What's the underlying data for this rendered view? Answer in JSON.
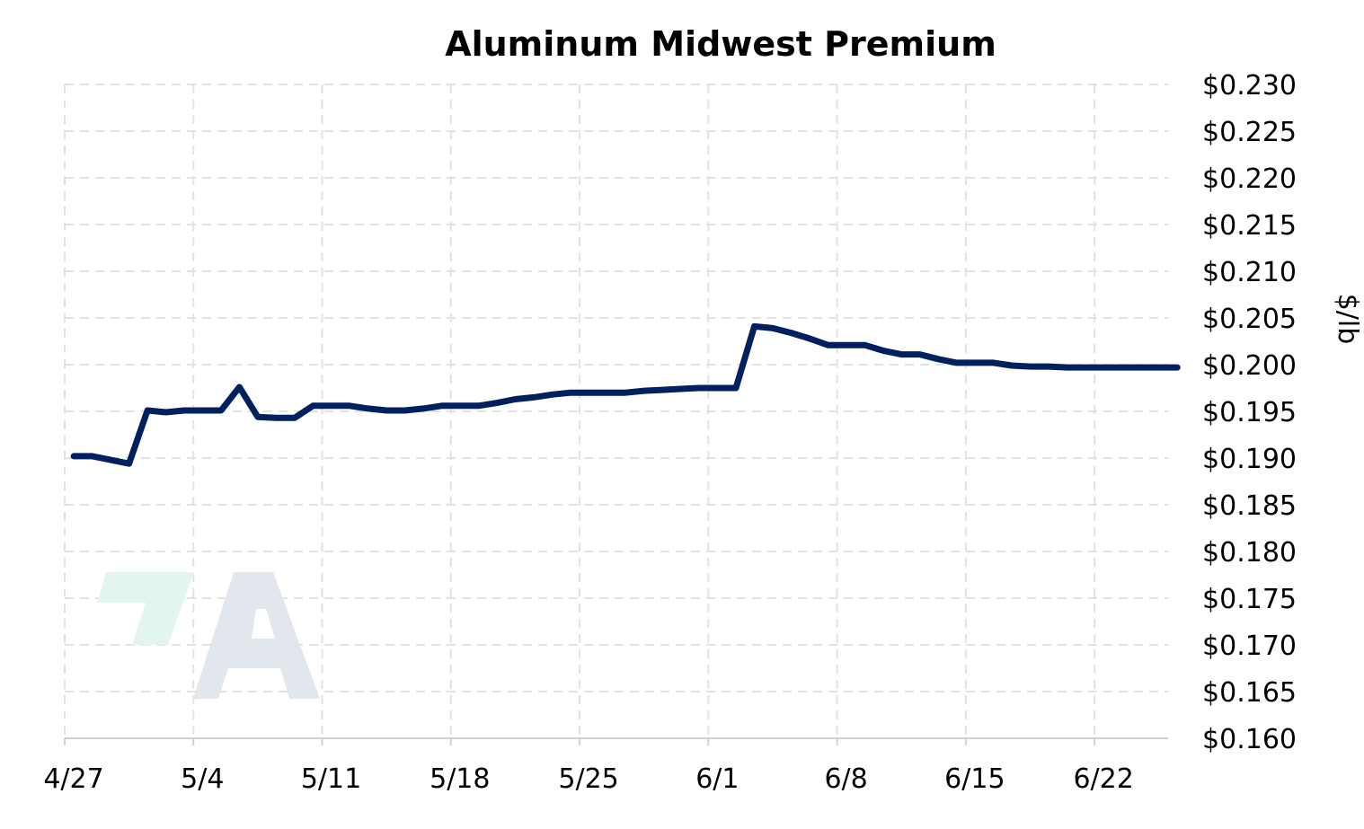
{
  "chart_data": {
    "type": "line",
    "title": "Aluminum Midwest Premium",
    "xlabel": "",
    "ylabel": "$/lb",
    "x_ticks": [
      "4/27",
      "5/4",
      "5/11",
      "5/18",
      "5/25",
      "6/1",
      "6/8",
      "6/15",
      "6/22"
    ],
    "y_ticks": [
      "$0.230",
      "$0.225",
      "$0.220",
      "$0.215",
      "$0.210",
      "$0.205",
      "$0.200",
      "$0.195",
      "$0.190",
      "$0.185",
      "$0.180",
      "$0.175",
      "$0.170",
      "$0.165",
      "$0.160"
    ],
    "ylim": [
      0.16,
      0.23
    ],
    "xlim": [
      "4/27",
      "6/26"
    ],
    "grid": true,
    "line_color": "#002060",
    "watermark_colors": {
      "accent": "#e3f6ee",
      "letter": "#e2e6ed"
    },
    "series": [
      {
        "x": [
          "4/27",
          "4/28",
          "4/29",
          "4/30",
          "5/1",
          "5/2",
          "5/3",
          "5/4",
          "5/5",
          "5/6",
          "5/7",
          "5/8",
          "5/9",
          "5/10",
          "5/11",
          "5/12",
          "5/13",
          "5/14",
          "5/15",
          "5/16",
          "5/17",
          "5/18",
          "5/19",
          "5/20",
          "5/21",
          "5/22",
          "5/23",
          "5/24",
          "5/25",
          "5/26",
          "5/27",
          "5/28",
          "5/29",
          "5/30",
          "5/31",
          "6/1",
          "6/2",
          "6/3",
          "6/4",
          "6/5",
          "6/6",
          "6/7",
          "6/8",
          "6/9",
          "6/10",
          "6/11",
          "6/12",
          "6/13",
          "6/14",
          "6/15",
          "6/16",
          "6/17",
          "6/18",
          "6/19",
          "6/20",
          "6/21",
          "6/22",
          "6/23",
          "6/24",
          "6/25",
          "6/26"
        ],
        "values": [
          0.1902,
          0.1902,
          0.1898,
          0.1894,
          0.1951,
          0.1949,
          0.1951,
          0.1951,
          0.1951,
          0.1976,
          0.1944,
          0.1943,
          0.1943,
          0.1956,
          0.1956,
          0.1956,
          0.1953,
          0.1951,
          0.1951,
          0.1953,
          0.1956,
          0.1956,
          0.1956,
          0.1959,
          0.1963,
          0.1965,
          0.1968,
          0.197,
          0.197,
          0.197,
          0.197,
          0.1972,
          0.1973,
          0.1974,
          0.1975,
          0.1975,
          0.1975,
          0.2041,
          0.2039,
          0.2034,
          0.2028,
          0.2021,
          0.2021,
          0.2021,
          0.2015,
          0.2011,
          0.2011,
          0.2006,
          0.2002,
          0.2002,
          0.2002,
          0.1999,
          0.1998,
          0.1998,
          0.1997,
          0.1997,
          0.1997,
          0.1997,
          0.1997,
          0.1997,
          0.1997
        ]
      }
    ]
  }
}
